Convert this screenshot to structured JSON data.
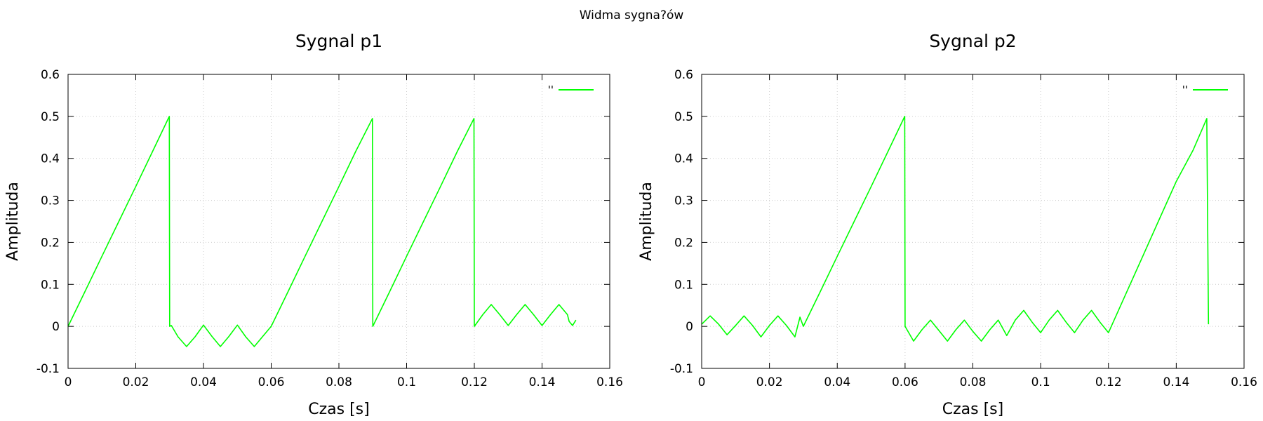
{
  "figure": {
    "suptitle": "Widma sygna?ów"
  },
  "chart_data": [
    {
      "type": "line",
      "title": "Sygnal p1",
      "xlabel": "Czas [s]",
      "ylabel": "Amplituda",
      "xlim": [
        0,
        0.16
      ],
      "ylim": [
        -0.1,
        0.6
      ],
      "xticks": [
        0,
        0.02,
        0.04,
        0.06,
        0.08,
        0.1,
        0.12,
        0.14,
        0.16
      ],
      "xtick_labels": [
        "0",
        "0.02",
        "0.04",
        "0.06",
        "0.08",
        "0.1",
        "0.12",
        "0.14",
        "0.16"
      ],
      "yticks": [
        -0.1,
        0,
        0.1,
        0.2,
        0.3,
        0.4,
        0.5,
        0.6
      ],
      "ytick_labels": [
        "-0.1",
        "0",
        "0.1",
        "0.2",
        "0.3",
        "0.4",
        "0.5",
        "0.6"
      ],
      "grid": true,
      "legend": {
        "position": "top-right",
        "entries": [
          {
            "label": "''",
            "color": "#00ff00"
          }
        ]
      },
      "series": [
        {
          "color": "#00ff00",
          "x": [
            0,
            0.005,
            0.01,
            0.015,
            0.02,
            0.025,
            0.0299,
            0.03,
            0.0305,
            0.0325,
            0.035,
            0.0375,
            0.04,
            0.0425,
            0.045,
            0.0475,
            0.05,
            0.0525,
            0.055,
            0.0575,
            0.06,
            0.065,
            0.07,
            0.075,
            0.08,
            0.085,
            0.0899,
            0.09,
            0.095,
            0.1,
            0.105,
            0.11,
            0.115,
            0.1199,
            0.12,
            0.1225,
            0.125,
            0.1275,
            0.13,
            0.1325,
            0.135,
            0.1375,
            0.14,
            0.1425,
            0.145,
            0.1475,
            0.148,
            0.149,
            0.15
          ],
          "y": [
            0,
            0.083,
            0.167,
            0.25,
            0.333,
            0.417,
            0.5,
            0,
            0.002,
            -0.025,
            -0.048,
            -0.025,
            0.003,
            -0.024,
            -0.048,
            -0.024,
            0.003,
            -0.025,
            -0.048,
            -0.024,
            0,
            0.083,
            0.167,
            0.25,
            0.333,
            0.417,
            0.495,
            0,
            0.083,
            0.167,
            0.25,
            0.333,
            0.417,
            0.495,
            0,
            0.028,
            0.052,
            0.028,
            0.002,
            0.028,
            0.052,
            0.028,
            0.002,
            0.028,
            0.052,
            0.028,
            0.012,
            0.002,
            0.015
          ]
        }
      ]
    },
    {
      "type": "line",
      "title": "Sygnal p2",
      "xlabel": "Czas [s]",
      "ylabel": "Amplituda",
      "xlim": [
        0,
        0.16
      ],
      "ylim": [
        -0.1,
        0.6
      ],
      "xticks": [
        0,
        0.02,
        0.04,
        0.06,
        0.08,
        0.1,
        0.12,
        0.14,
        0.16
      ],
      "xtick_labels": [
        "0",
        "0.02",
        "0.04",
        "0.06",
        "0.08",
        "0.1",
        "0.12",
        "0.14",
        "0.16"
      ],
      "yticks": [
        -0.1,
        0,
        0.1,
        0.2,
        0.3,
        0.4,
        0.5,
        0.6
      ],
      "ytick_labels": [
        "-0.1",
        "0",
        "0.1",
        "0.2",
        "0.3",
        "0.4",
        "0.5",
        "0.6"
      ],
      "grid": true,
      "legend": {
        "position": "top-right",
        "entries": [
          {
            "label": "''",
            "color": "#00ff00"
          }
        ]
      },
      "series": [
        {
          "color": "#00ff00",
          "x": [
            0,
            0.0025,
            0.005,
            0.0075,
            0.01,
            0.0125,
            0.015,
            0.0175,
            0.02,
            0.0225,
            0.025,
            0.0275,
            0.029,
            0.03,
            0.035,
            0.04,
            0.045,
            0.05,
            0.055,
            0.0599,
            0.06,
            0.0625,
            0.065,
            0.0675,
            0.07,
            0.0725,
            0.075,
            0.0775,
            0.08,
            0.0825,
            0.085,
            0.0875,
            0.09,
            0.0925,
            0.095,
            0.0975,
            0.1,
            0.1025,
            0.105,
            0.1075,
            0.11,
            0.1125,
            0.115,
            0.1175,
            0.12,
            0.125,
            0.13,
            0.135,
            0.14,
            0.145,
            0.149,
            0.1495
          ],
          "y": [
            0.005,
            0.025,
            0.005,
            -0.02,
            0.002,
            0.025,
            0.002,
            -0.025,
            0.002,
            0.025,
            0.002,
            -0.025,
            0.022,
            0,
            0.083,
            0.167,
            0.25,
            0.333,
            0.417,
            0.5,
            0,
            -0.035,
            -0.008,
            0.015,
            -0.01,
            -0.035,
            -0.008,
            0.015,
            -0.012,
            -0.035,
            -0.008,
            0.015,
            -0.022,
            0.015,
            0.038,
            0.01,
            -0.015,
            0.015,
            0.038,
            0.01,
            -0.015,
            0.015,
            0.038,
            0.01,
            -0.015,
            0.075,
            0.165,
            0.255,
            0.345,
            0.42,
            0.495,
            0.005
          ]
        }
      ]
    }
  ]
}
